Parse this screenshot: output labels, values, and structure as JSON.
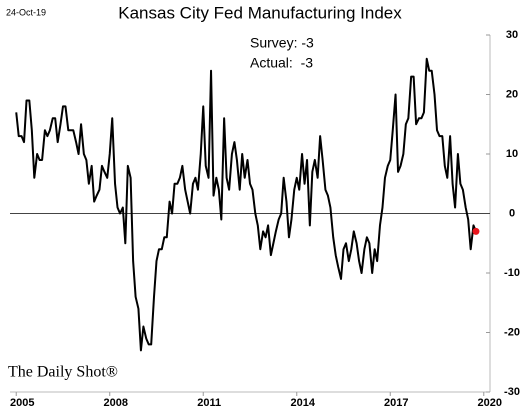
{
  "chart_data": {
    "type": "line",
    "title": "Kansas City Fed Manufacturing Index",
    "date_label": "24-Oct-19",
    "annotations": [
      "Survey: -3",
      "Actual:  -3"
    ],
    "watermark": "The Daily Shot®",
    "x": [
      2005,
      2005.08,
      2005.17,
      2005.25,
      2005.33,
      2005.42,
      2005.5,
      2005.58,
      2005.67,
      2005.75,
      2005.83,
      2005.92,
      2006,
      2006.08,
      2006.17,
      2006.25,
      2006.33,
      2006.42,
      2006.5,
      2006.58,
      2006.67,
      2006.75,
      2006.83,
      2006.92,
      2007,
      2007.08,
      2007.17,
      2007.25,
      2007.33,
      2007.42,
      2007.5,
      2007.58,
      2007.67,
      2007.75,
      2007.83,
      2007.92,
      2008,
      2008.08,
      2008.17,
      2008.25,
      2008.33,
      2008.42,
      2008.5,
      2008.58,
      2008.67,
      2008.75,
      2008.83,
      2008.92,
      2009,
      2009.08,
      2009.17,
      2009.25,
      2009.33,
      2009.42,
      2009.5,
      2009.58,
      2009.67,
      2009.75,
      2009.83,
      2009.92,
      2010,
      2010.08,
      2010.17,
      2010.25,
      2010.33,
      2010.42,
      2010.5,
      2010.58,
      2010.67,
      2010.75,
      2010.83,
      2010.92,
      2011,
      2011.08,
      2011.17,
      2011.25,
      2011.33,
      2011.42,
      2011.5,
      2011.58,
      2011.67,
      2011.75,
      2011.83,
      2011.92,
      2012,
      2012.08,
      2012.17,
      2012.25,
      2012.33,
      2012.42,
      2012.5,
      2012.58,
      2012.67,
      2012.75,
      2012.83,
      2012.92,
      2013,
      2013.08,
      2013.17,
      2013.25,
      2013.33,
      2013.42,
      2013.5,
      2013.58,
      2013.67,
      2013.75,
      2013.83,
      2013.92,
      2014,
      2014.08,
      2014.17,
      2014.25,
      2014.33,
      2014.42,
      2014.5,
      2014.58,
      2014.67,
      2014.75,
      2014.83,
      2014.92,
      2015,
      2015.08,
      2015.17,
      2015.25,
      2015.33,
      2015.42,
      2015.5,
      2015.58,
      2015.67,
      2015.75,
      2015.83,
      2015.92,
      2016,
      2016.08,
      2016.17,
      2016.25,
      2016.33,
      2016.42,
      2016.5,
      2016.58,
      2016.67,
      2016.75,
      2016.83,
      2016.92,
      2017,
      2017.08,
      2017.17,
      2017.25,
      2017.33,
      2017.42,
      2017.5,
      2017.58,
      2017.67,
      2017.75,
      2017.83,
      2017.92,
      2018,
      2018.08,
      2018.17,
      2018.25,
      2018.33,
      2018.42,
      2018.5,
      2018.58,
      2018.67,
      2018.75,
      2018.83,
      2018.92,
      2019,
      2019.08,
      2019.17,
      2019.25,
      2019.33,
      2019.42,
      2019.5,
      2019.58,
      2019.67,
      2019.75
    ],
    "values": [
      17,
      13,
      13,
      12,
      19,
      19,
      14,
      6,
      10,
      9,
      9,
      14,
      13,
      14,
      16,
      16,
      12,
      15,
      18,
      18,
      14,
      14,
      14,
      12,
      10,
      15,
      10,
      9,
      5,
      8,
      2,
      3,
      4,
      8,
      7,
      6,
      10,
      16,
      5,
      1,
      0,
      1,
      -5,
      8,
      6,
      -8,
      -14,
      -16,
      -23,
      -19,
      -21,
      -22,
      -22,
      -14,
      -8,
      -6,
      -6,
      -4,
      -4,
      2,
      0,
      5,
      5,
      6,
      8,
      4,
      2,
      0,
      5,
      6,
      4,
      10,
      18,
      8,
      6,
      24,
      3,
      6,
      4,
      -1,
      16,
      6,
      4,
      10,
      12,
      9,
      4,
      10,
      6,
      9,
      5,
      4,
      0,
      -2,
      -6,
      -3,
      -4,
      -2,
      -7,
      -5,
      -3,
      -1,
      0,
      6,
      2,
      -4,
      -1,
      4,
      6,
      4,
      10,
      5,
      9,
      -2,
      7,
      9,
      6,
      13,
      9,
      4,
      3,
      1,
      -4,
      -7,
      -9,
      -11,
      -6,
      -5,
      -8,
      -6,
      -3,
      -5,
      -8,
      -10,
      -6,
      -4,
      -5,
      -10,
      -6,
      -8,
      -2,
      1,
      6,
      8,
      9,
      14,
      20,
      7,
      8,
      10,
      15,
      16,
      23,
      23,
      15,
      16,
      16,
      17,
      26,
      24,
      24,
      20,
      14,
      13,
      13,
      8,
      6,
      13,
      5,
      1,
      10,
      5,
      4,
      1,
      -1,
      -6,
      -2,
      -3
    ],
    "color": "#000000",
    "highlight": {
      "x": 2019.75,
      "value": -3,
      "color": "#e8141c"
    },
    "xlim": [
      2004.8,
      2020.2
    ],
    "xticks": [
      2005,
      2008,
      2011,
      2014,
      2017,
      2020
    ],
    "ylim": [
      -30,
      30
    ],
    "yticks": [
      -30,
      -20,
      -10,
      0,
      10,
      20,
      30
    ],
    "y_axis_side": "right"
  }
}
